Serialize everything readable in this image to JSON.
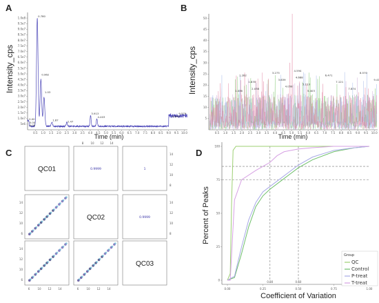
{
  "chart_data": [
    {
      "panel": "A",
      "type": "line",
      "xlabel": "Time (min)",
      "ylabel": "Intensity_cps",
      "xlim": [
        0,
        10.2
      ],
      "ylim": [
        0,
        105000000.0
      ],
      "x_ticks": [
        "0.5",
        "1.0",
        "1.5",
        "2.0",
        "2.5",
        "3.0",
        "3.5",
        "4.0",
        "4.5",
        "5.0",
        "5.5",
        "6.0",
        "6.5",
        "7.0",
        "7.5",
        "8.0",
        "8.5",
        "9.0",
        "9.5",
        "10.0"
      ],
      "y_ticks": [
        "5e6",
        "1.0e7",
        "1.5e7",
        "2.0e7",
        "2.5e7",
        "3.0e7",
        "3.5e7",
        "4.0e7",
        "4.5e7",
        "5.0e7",
        "5.5e7",
        "6.0e7",
        "6.5e7",
        "7.0e7",
        "7.5e7",
        "8.0e7",
        "8.5e7",
        "9.0e7",
        "9.5e7",
        "1.0e8"
      ],
      "peak_labels": [
        {
          "t": 0.05,
          "v": 8000000.0,
          "label": "0.00"
        },
        {
          "t": 0.62,
          "v": 100000000.0,
          "label": "0.780"
        },
        {
          "t": 0.85,
          "v": 48000000.0,
          "label": "0.962"
        },
        {
          "t": 1.05,
          "v": 32000000.0,
          "label": "1.03"
        },
        {
          "t": 1.55,
          "v": 7000000.0,
          "label": "1.87"
        },
        {
          "t": 2.5,
          "v": 6000000.0,
          "label": "2.47"
        },
        {
          "t": 4.02,
          "v": 13000000.0,
          "label": "3.913"
        },
        {
          "t": 4.42,
          "v": 10000000.0,
          "label": "4.403"
        },
        {
          "t": 9.6,
          "v": 13000000.0,
          "label": "9.579"
        },
        {
          "t": 9.2,
          "v": 10500000.0,
          "label": "8.893"
        }
      ],
      "small_annotations": [
        "0.00",
        "0.00"
      ]
    },
    {
      "panel": "B",
      "type": "line",
      "xlabel": "Time (min)",
      "ylabel": "Intensity_cps",
      "xlim": [
        0,
        10.2
      ],
      "ylim": [
        0,
        52
      ],
      "y_ticks": [
        5,
        10,
        15,
        20,
        25,
        30,
        35,
        40,
        45,
        50
      ],
      "x_ticks": [
        "0.5",
        "1.0",
        "1.5",
        "2.0",
        "2.5",
        "3.0",
        "3.5",
        "4.0",
        "4.5",
        "5.0",
        "5.5",
        "6.0",
        "6.5",
        "7.0",
        "7.5",
        "8.0",
        "8.5",
        "9.0",
        "9.5",
        "10.0"
      ],
      "series_colors": [
        "#c9a6d4",
        "#7cc66a",
        "#9fb5e8",
        "#e07a9a"
      ],
      "peak_labels": [
        "1.036",
        "1.282",
        "1.835",
        "2.038",
        "3.273",
        "3.639",
        "4.058",
        "4.594",
        "4.688",
        "5.113",
        "5.403",
        "6.471",
        "7.121",
        "7.874",
        "8.570",
        "9.418"
      ]
    },
    {
      "panel": "C",
      "type": "scatter",
      "diagonal_labels": [
        "QC01",
        "QC02",
        "QC03"
      ],
      "correlations": {
        "r12": "0.9999",
        "r13": "1",
        "r23": "0.9999"
      },
      "bottom_ticks": [
        "6",
        "10",
        "12",
        "14"
      ],
      "top_ticks": [
        "8",
        "10",
        "12",
        "14"
      ],
      "x": [
        5.5,
        6.2,
        7.0,
        7.8,
        8.5,
        9.3,
        10.0,
        10.8,
        11.6,
        12.4,
        13.2,
        14.0,
        14.8
      ],
      "y": [
        5.5,
        6.2,
        7.0,
        7.8,
        8.5,
        9.3,
        10.0,
        10.8,
        11.6,
        12.4,
        13.2,
        14.0,
        14.8
      ]
    },
    {
      "panel": "D",
      "type": "line",
      "xlabel": "Coefficient of Variation",
      "ylabel": "Percent of Peaks",
      "xlim": [
        0,
        1.0
      ],
      "ylim": [
        0,
        100
      ],
      "x_ticks": [
        "0.00",
        "0.25",
        "0.50",
        "0.75",
        "1.00"
      ],
      "x_tick_values": [
        0,
        0.25,
        0.5,
        0.75,
        1.0
      ],
      "y_ticks": [
        0,
        25,
        50,
        75,
        100
      ],
      "reference_lines": {
        "vertical": [
          0.3,
          0.5
        ],
        "horizontal": [
          75,
          85
        ]
      },
      "reference_labels": [
        "0.30",
        "0.50"
      ],
      "legend_title": "Group",
      "legend_position": "bottom-right",
      "series": [
        {
          "name": "QC",
          "color": "#9ccf72",
          "x": [
            0,
            0.02,
            0.03,
            0.04,
            0.06,
            1.0
          ],
          "y": [
            0,
            5,
            60,
            97,
            100,
            100
          ]
        },
        {
          "name": "Control",
          "color": "#6fbf6a",
          "x": [
            0,
            0.05,
            0.1,
            0.15,
            0.2,
            0.25,
            0.3,
            0.4,
            0.5,
            0.6,
            0.75,
            0.9,
            1.0
          ],
          "y": [
            0,
            2,
            20,
            40,
            55,
            63,
            68,
            76,
            84,
            90,
            96,
            99,
            100
          ]
        },
        {
          "name": "P-treat",
          "color": "#a7a9e6",
          "x": [
            0,
            0.05,
            0.1,
            0.15,
            0.2,
            0.25,
            0.3,
            0.4,
            0.5,
            0.6,
            0.75,
            0.9,
            1.0
          ],
          "y": [
            0,
            3,
            25,
            45,
            58,
            66,
            70,
            78,
            86,
            92,
            97,
            99,
            100
          ]
        },
        {
          "name": "T-treat",
          "color": "#d6a0e3",
          "x": [
            0,
            0.02,
            0.05,
            0.1,
            0.2,
            0.3,
            0.35,
            0.4,
            0.5,
            0.6,
            0.75,
            0.9,
            1.0
          ],
          "y": [
            0,
            0,
            60,
            75,
            82,
            88,
            93,
            96,
            98,
            99,
            100,
            100,
            100
          ]
        }
      ]
    }
  ],
  "panels": {
    "a": "A",
    "b": "B",
    "c": "C",
    "d": "D"
  },
  "ui": {
    "a_xlabel": "Time (min)",
    "a_ylabel": "Intensity_cps",
    "b_xlabel": "Time (min)",
    "b_ylabel": "Intensity_cps",
    "d_xlabel": "Coefficient of Variation",
    "d_ylabel": "Percent of Peaks",
    "c_qc01": "QC01",
    "c_qc02": "QC02",
    "c_qc03": "QC03",
    "c_r12": "0.9999",
    "c_r13": "1",
    "c_r23": "0.9999",
    "legend_title": "Group",
    "legend_qc": "QC",
    "legend_control": "Control",
    "legend_ptreat": "P-treat",
    "legend_ttreat": "T-treat"
  }
}
